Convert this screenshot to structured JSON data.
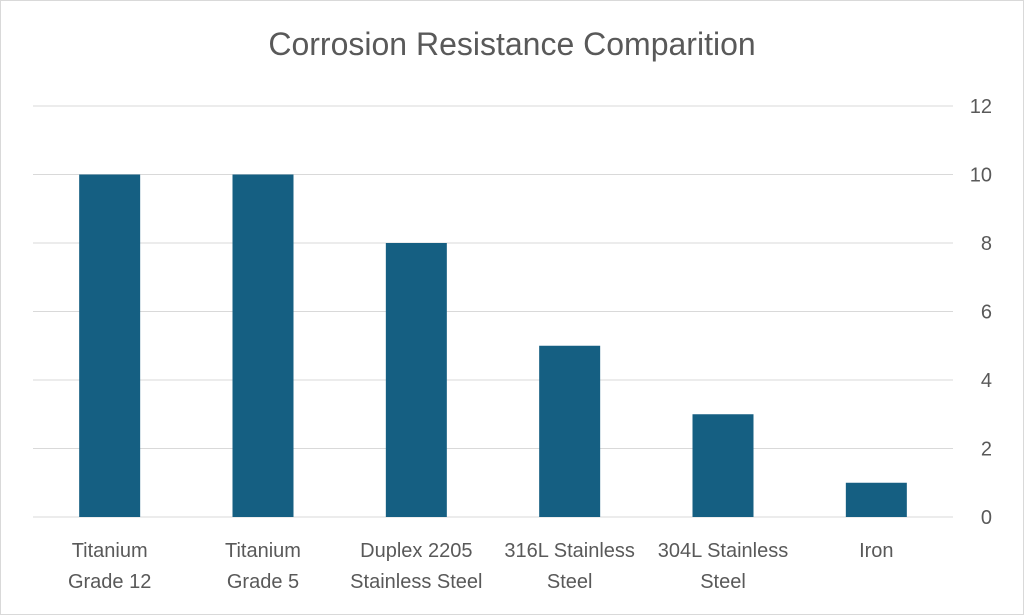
{
  "chart_data": {
    "type": "bar",
    "title": "Corrosion Resistance Comparition",
    "categories": [
      [
        "Titanium",
        "Grade 12"
      ],
      [
        "Titanium",
        "Grade 5"
      ],
      [
        "Duplex 2205",
        "Stainless Steel"
      ],
      [
        "316L Stainless",
        "Steel"
      ],
      [
        "304L Stainless",
        "Steel"
      ],
      [
        "Iron"
      ]
    ],
    "values": [
      10,
      10,
      8,
      5,
      3,
      1
    ],
    "ylim": [
      0,
      12
    ],
    "yticks": [
      0,
      2,
      4,
      6,
      8,
      10,
      12
    ],
    "yaxis_position": "right",
    "grid": true,
    "bar_color": "#155f82",
    "grid_color": "#d9d9d9"
  }
}
